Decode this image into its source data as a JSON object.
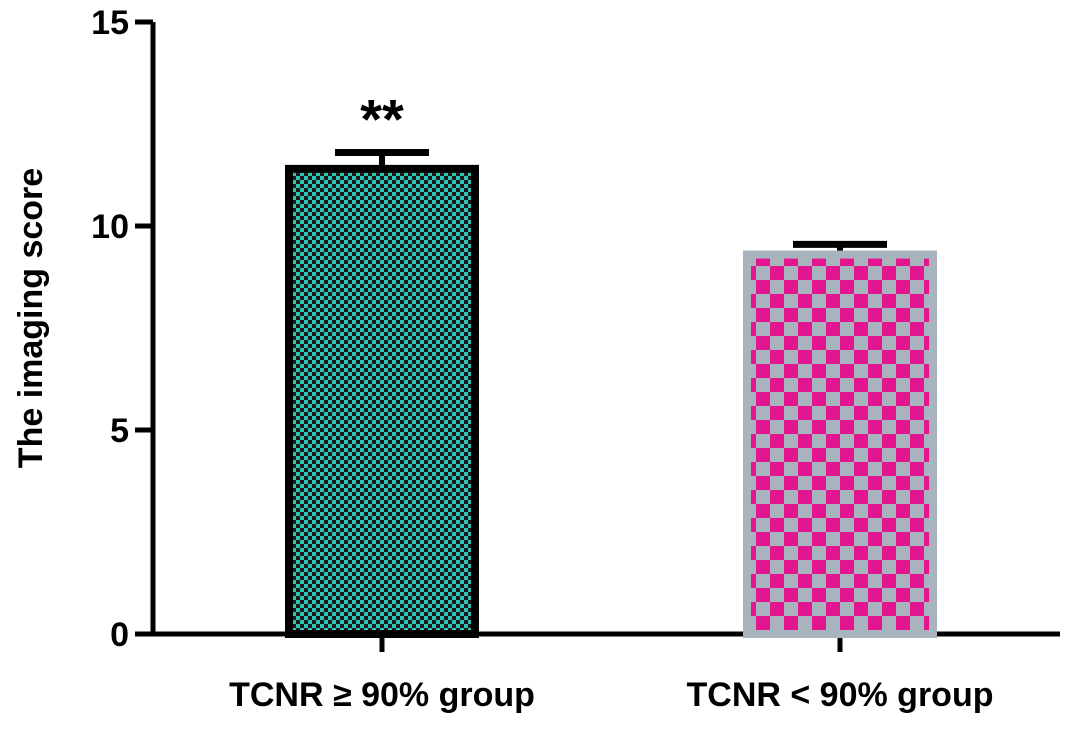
{
  "chart_data": {
    "type": "bar",
    "title": "",
    "xlabel": "",
    "ylabel": "The imaging score",
    "ylim": [
      0,
      15
    ],
    "yticks": [
      0,
      5,
      10,
      15
    ],
    "grid": false,
    "categories": [
      "TCNR ≥ 90% group",
      "TCNR < 90% group"
    ],
    "values": [
      11.4,
      9.3
    ],
    "errors": [
      0.4,
      0.25
    ],
    "annotations": [
      "**",
      ""
    ],
    "colors": {
      "bar1_fill_a": "#1a1a1a",
      "bar1_fill_b": "#2ec4b6",
      "bar1_border": "#000000",
      "bar2_fill_a": "#a9b3bd",
      "bar2_fill_b": "#e4168f",
      "bar2_border": "#a9b3bd"
    }
  }
}
